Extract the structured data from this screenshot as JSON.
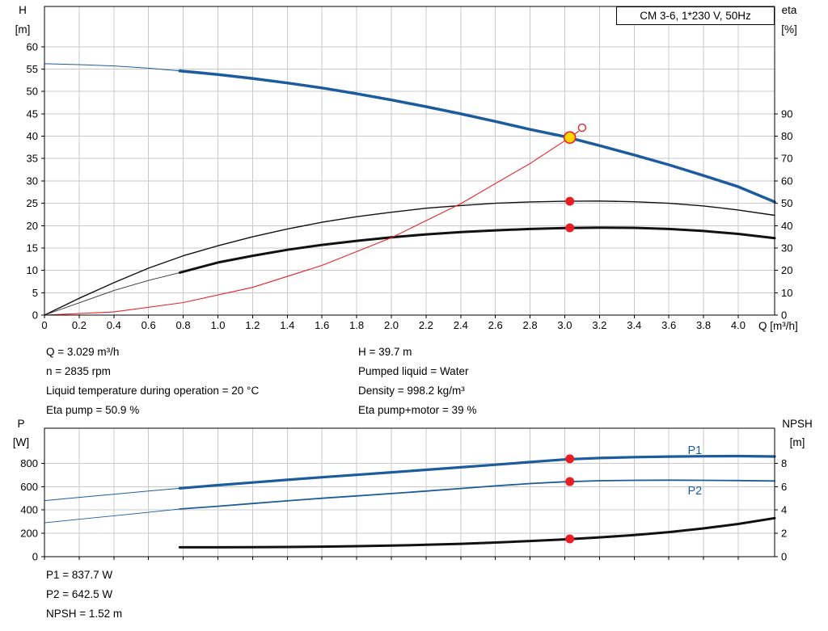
{
  "title_box": "CM 3-6, 1*230 V, 50Hz",
  "colors": {
    "curve_blue": "#1d5c9c",
    "curve_black": "#111111",
    "curve_red": "#e8232a",
    "marker_red": "#e81e25",
    "duty_yellow": "#ffd500",
    "grid": "#c9c9c9"
  },
  "operating_point": {
    "left": [
      "Q = 3.029 m³/h",
      "n = 2835 rpm",
      "Liquid temperature during operation = 20 °C",
      "Eta pump = 50.9 %"
    ],
    "right": [
      "H = 39.7 m",
      "Pumped liquid = Water",
      "Density = 998.2 kg/m³",
      "Eta pump+motor = 39 %"
    ]
  },
  "power_readout": [
    "P1 = 837.7 W",
    "P2 = 642.5 W",
    "NPSH = 1.52 m"
  ],
  "chart_data": [
    {
      "type": "line",
      "title": "CM 3-6, 1*230 V, 50Hz",
      "axis_labels": {
        "left1": "H",
        "left2": "[m]",
        "right1": "eta",
        "right2": "[%]",
        "x": "Q [m³/h]"
      },
      "xlim": [
        0,
        4.21
      ],
      "ylim_left": [
        0,
        69
      ],
      "ylim_right": [
        0,
        138
      ],
      "show_x_labels": true,
      "xticks": [
        [
          0,
          "0"
        ],
        [
          0.2,
          "0.2"
        ],
        [
          0.4,
          "0.4"
        ],
        [
          0.6,
          "0.6"
        ],
        [
          0.8,
          "0.8"
        ],
        [
          1,
          "1.0"
        ],
        [
          1.2,
          "1.2"
        ],
        [
          1.4,
          "1.4"
        ],
        [
          1.6,
          "1.6"
        ],
        [
          1.8,
          "1.8"
        ],
        [
          2,
          "2.0"
        ],
        [
          2.2,
          "2.2"
        ],
        [
          2.4,
          "2.4"
        ],
        [
          2.6,
          "2.6"
        ],
        [
          2.8,
          "2.8"
        ],
        [
          3,
          "3.0"
        ],
        [
          3.2,
          "3.2"
        ],
        [
          3.4,
          "3.4"
        ],
        [
          3.6,
          "3.6"
        ],
        [
          3.8,
          "3.8"
        ],
        [
          4,
          "4.0"
        ]
      ],
      "yticks_left": [
        [
          0,
          "0"
        ],
        [
          5,
          "5"
        ],
        [
          10,
          "10"
        ],
        [
          15,
          "15"
        ],
        [
          20,
          "20"
        ],
        [
          25,
          "25"
        ],
        [
          30,
          "30"
        ],
        [
          35,
          "35"
        ],
        [
          40,
          "40"
        ],
        [
          45,
          "45"
        ],
        [
          50,
          "50"
        ],
        [
          55,
          "55"
        ],
        [
          60,
          "60"
        ]
      ],
      "yticks_right": [
        [
          0,
          "0"
        ],
        [
          10,
          "10"
        ],
        [
          20,
          "20"
        ],
        [
          30,
          "30"
        ],
        [
          40,
          "40"
        ],
        [
          50,
          "50"
        ],
        [
          60,
          "60"
        ],
        [
          70,
          "70"
        ],
        [
          80,
          "80"
        ],
        [
          90,
          "90"
        ]
      ],
      "series": [
        {
          "name": "pump-curve-lead",
          "axis": "left",
          "color": "#1d5c9c",
          "width": 1,
          "points": [
            [
              0,
              56.2
            ],
            [
              0.2,
              56.0
            ],
            [
              0.4,
              55.7
            ],
            [
              0.6,
              55.2
            ],
            [
              0.78,
              54.6
            ]
          ]
        },
        {
          "name": "pump-curve",
          "axis": "left",
          "color": "#1d5c9c",
          "width": 3.5,
          "points": [
            [
              0.78,
              54.6
            ],
            [
              1,
              53.8
            ],
            [
              1.2,
              52.9
            ],
            [
              1.4,
              51.9
            ],
            [
              1.6,
              50.8
            ],
            [
              1.8,
              49.5
            ],
            [
              2,
              48.1
            ],
            [
              2.2,
              46.6
            ],
            [
              2.4,
              45
            ],
            [
              2.6,
              43.3
            ],
            [
              2.8,
              41.5
            ],
            [
              3,
              39.9
            ],
            [
              3.2,
              37.9
            ],
            [
              3.4,
              35.8
            ],
            [
              3.6,
              33.6
            ],
            [
              3.8,
              31.2
            ],
            [
              4,
              28.7
            ],
            [
              4.21,
              25.3
            ]
          ]
        },
        {
          "name": "eta-pump-curve",
          "axis": "right",
          "color": "#111111",
          "width": 1.4,
          "points": [
            [
              0,
              0
            ],
            [
              0.2,
              7.5
            ],
            [
              0.4,
              14.5
            ],
            [
              0.6,
              21
            ],
            [
              0.8,
              26.5
            ],
            [
              1,
              31
            ],
            [
              1.2,
              35
            ],
            [
              1.4,
              38.5
            ],
            [
              1.6,
              41.5
            ],
            [
              1.8,
              44
            ],
            [
              2,
              46
            ],
            [
              2.2,
              47.8
            ],
            [
              2.4,
              49
            ],
            [
              2.6,
              50
            ],
            [
              2.8,
              50.6
            ],
            [
              3,
              50.9
            ],
            [
              3.2,
              51
            ],
            [
              3.4,
              50.7
            ],
            [
              3.6,
              50
            ],
            [
              3.8,
              48.8
            ],
            [
              4,
              47
            ],
            [
              4.21,
              44.6
            ]
          ]
        },
        {
          "name": "eta-pump-motor-lead",
          "axis": "right",
          "color": "#333333",
          "width": 0.9,
          "points": [
            [
              0,
              0
            ],
            [
              0.2,
              5.5
            ],
            [
              0.4,
              11
            ],
            [
              0.6,
              15.5
            ],
            [
              0.78,
              19
            ]
          ]
        },
        {
          "name": "eta-pump-motor-curve",
          "axis": "right",
          "color": "#111111",
          "width": 3,
          "points": [
            [
              0.78,
              19
            ],
            [
              1,
              23.5
            ],
            [
              1.2,
              26.5
            ],
            [
              1.4,
              29.2
            ],
            [
              1.6,
              31.4
            ],
            [
              1.8,
              33.2
            ],
            [
              2,
              34.8
            ],
            [
              2.2,
              36.1
            ],
            [
              2.4,
              37.1
            ],
            [
              2.6,
              37.9
            ],
            [
              2.8,
              38.5
            ],
            [
              3,
              38.9
            ],
            [
              3.2,
              39.1
            ],
            [
              3.4,
              39
            ],
            [
              3.6,
              38.5
            ],
            [
              3.8,
              37.6
            ],
            [
              4,
              36.3
            ],
            [
              4.21,
              34.4
            ]
          ]
        },
        {
          "name": "system-curve",
          "axis": "left",
          "color": "#e8232a",
          "width": 1.1,
          "points": [
            [
              0,
              0
            ],
            [
              0.4,
              0.7
            ],
            [
              0.8,
              2.8
            ],
            [
              1.2,
              6.2
            ],
            [
              1.6,
              11.1
            ],
            [
              2,
              17.3
            ],
            [
              2.4,
              24.9
            ],
            [
              2.8,
              33.9
            ],
            [
              3.029,
              39.7
            ],
            [
              3.08,
              41.1
            ]
          ]
        }
      ],
      "markers": [
        {
          "kind": "dot",
          "axis": "right",
          "x": 3.029,
          "y": 50.9,
          "name": "eta-pump-point"
        },
        {
          "kind": "dot",
          "axis": "right",
          "x": 3.029,
          "y": 39,
          "name": "eta-pump-motor-point"
        },
        {
          "kind": "open",
          "axis": "left",
          "x": 3.1,
          "y": 41.9,
          "name": "alternative-duty-point"
        },
        {
          "kind": "duty",
          "axis": "left",
          "x": 3.029,
          "y": 39.7,
          "name": "duty-point"
        }
      ],
      "annotations": []
    },
    {
      "type": "line",
      "axis_labels": {
        "left1": "P",
        "left2": "[W]",
        "right1": "NPSH",
        "right2": "[m]"
      },
      "xlim": [
        0,
        4.21
      ],
      "ylim_left": [
        0,
        1100
      ],
      "ylim_right": [
        0,
        11
      ],
      "show_x_labels": false,
      "xticks": [
        [
          0,
          "0"
        ],
        [
          0.2,
          "0.2"
        ],
        [
          0.4,
          "0.4"
        ],
        [
          0.6,
          "0.6"
        ],
        [
          0.8,
          "0.8"
        ],
        [
          1,
          "1.0"
        ],
        [
          1.2,
          "1.2"
        ],
        [
          1.4,
          "1.4"
        ],
        [
          1.6,
          "1.6"
        ],
        [
          1.8,
          "1.8"
        ],
        [
          2,
          "2.0"
        ],
        [
          2.2,
          "2.2"
        ],
        [
          2.4,
          "2.4"
        ],
        [
          2.6,
          "2.6"
        ],
        [
          2.8,
          "2.8"
        ],
        [
          3,
          "3.0"
        ],
        [
          3.2,
          "3.2"
        ],
        [
          3.4,
          "3.4"
        ],
        [
          3.6,
          "3.6"
        ],
        [
          3.8,
          "3.8"
        ],
        [
          4,
          "4.0"
        ]
      ],
      "yticks_left": [
        [
          0,
          "0"
        ],
        [
          200,
          "200"
        ],
        [
          400,
          "400"
        ],
        [
          600,
          "600"
        ],
        [
          800,
          "800"
        ]
      ],
      "yticks_right": [
        [
          0,
          "0"
        ],
        [
          2,
          "2"
        ],
        [
          4,
          "4"
        ],
        [
          6,
          "6"
        ],
        [
          8,
          "8"
        ]
      ],
      "series": [
        {
          "name": "p1-curve-lead",
          "axis": "left",
          "color": "#1d5c9c",
          "width": 1,
          "points": [
            [
              0,
              480
            ],
            [
              0.2,
              508
            ],
            [
              0.4,
              535
            ],
            [
              0.6,
              562
            ],
            [
              0.78,
              585
            ]
          ]
        },
        {
          "name": "p1-curve",
          "axis": "left",
          "color": "#1d5c9c",
          "width": 3.2,
          "points": [
            [
              0.78,
              585
            ],
            [
              1,
              612
            ],
            [
              1.2,
              635
            ],
            [
              1.4,
              658
            ],
            [
              1.6,
              680
            ],
            [
              1.8,
              701
            ],
            [
              2,
              722
            ],
            [
              2.2,
              744
            ],
            [
              2.4,
              765
            ],
            [
              2.6,
              787
            ],
            [
              2.8,
              810
            ],
            [
              3,
              832
            ],
            [
              3.2,
              845
            ],
            [
              3.4,
              852
            ],
            [
              3.6,
              857
            ],
            [
              3.8,
              860
            ],
            [
              4,
              861
            ],
            [
              4.21,
              858
            ]
          ]
        },
        {
          "name": "p2-curve-lead",
          "axis": "left",
          "color": "#1d5c9c",
          "width": 0.9,
          "points": [
            [
              0,
              290
            ],
            [
              0.2,
              320
            ],
            [
              0.4,
              350
            ],
            [
              0.6,
              380
            ],
            [
              0.78,
              408
            ]
          ]
        },
        {
          "name": "p2-curve",
          "axis": "left",
          "color": "#1d5c9c",
          "width": 1.8,
          "points": [
            [
              0.78,
              408
            ],
            [
              1,
              432
            ],
            [
              1.2,
              455
            ],
            [
              1.4,
              478
            ],
            [
              1.6,
              500
            ],
            [
              1.8,
              520
            ],
            [
              2,
              540
            ],
            [
              2.2,
              562
            ],
            [
              2.4,
              584
            ],
            [
              2.6,
              606
            ],
            [
              2.8,
              626
            ],
            [
              3,
              641
            ],
            [
              3.2,
              650
            ],
            [
              3.4,
              654
            ],
            [
              3.6,
              655
            ],
            [
              3.8,
              654
            ],
            [
              4,
              652
            ],
            [
              4.21,
              648
            ]
          ]
        },
        {
          "name": "npsh-curve",
          "axis": "right",
          "color": "#111111",
          "width": 3,
          "points": [
            [
              0.78,
              0.8
            ],
            [
              1,
              0.8
            ],
            [
              1.2,
              0.81
            ],
            [
              1.4,
              0.83
            ],
            [
              1.6,
              0.86
            ],
            [
              1.8,
              0.9
            ],
            [
              2,
              0.95
            ],
            [
              2.2,
              1.02
            ],
            [
              2.4,
              1.1
            ],
            [
              2.6,
              1.21
            ],
            [
              2.8,
              1.34
            ],
            [
              3,
              1.48
            ],
            [
              3.2,
              1.65
            ],
            [
              3.4,
              1.85
            ],
            [
              3.6,
              2.1
            ],
            [
              3.8,
              2.42
            ],
            [
              4,
              2.8
            ],
            [
              4.21,
              3.3
            ]
          ]
        }
      ],
      "markers": [
        {
          "kind": "dot",
          "axis": "left",
          "x": 3.029,
          "y": 838,
          "name": "p1-point"
        },
        {
          "kind": "dot",
          "axis": "left",
          "x": 3.029,
          "y": 643,
          "name": "p2-point"
        },
        {
          "kind": "dot",
          "axis": "right",
          "x": 3.029,
          "y": 1.52,
          "name": "npsh-point"
        }
      ],
      "annotations": [
        {
          "text": "P1",
          "x": 3.75,
          "y": 905,
          "color": "#1d5c9c",
          "name": "p1-series-label"
        },
        {
          "text": "P2",
          "x": 3.75,
          "y": 560,
          "color": "#1d5c9c",
          "name": "p2-series-label"
        }
      ]
    }
  ]
}
